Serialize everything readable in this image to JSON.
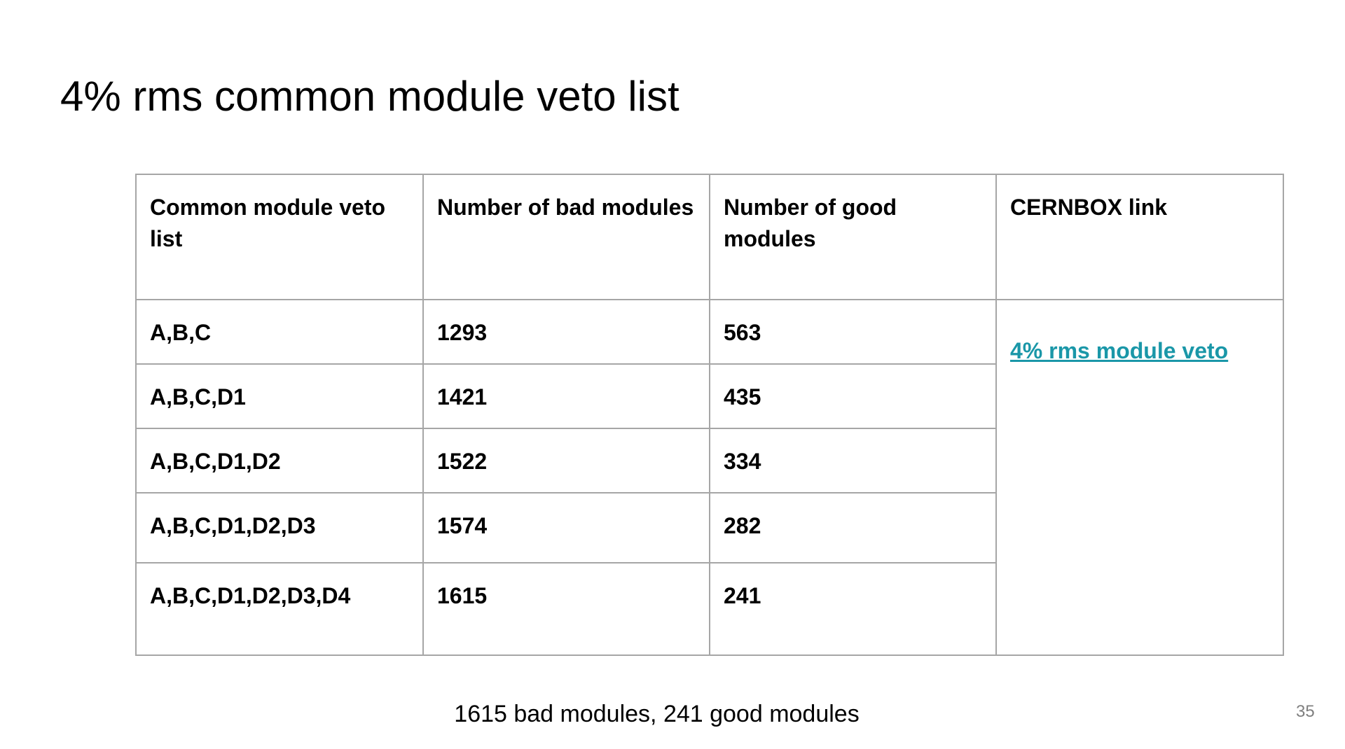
{
  "slide": {
    "title": "4% rms common module veto list",
    "summary": "1615 bad modules, 241 good modules",
    "page_number": "35"
  },
  "table": {
    "headers": [
      "Common module veto list",
      "Number of bad modules",
      "Number of good modules",
      "CERNBOX link"
    ],
    "rows": [
      {
        "veto_list": "A,B,C",
        "bad": "1293",
        "good": "563"
      },
      {
        "veto_list": "A,B,C,D1",
        "bad": "1421",
        "good": "435"
      },
      {
        "veto_list": "A,B,C,D1,D2",
        "bad": "1522",
        "good": "334"
      },
      {
        "veto_list": "A,B,C,D1,D2,D3",
        "bad": "1574",
        "good": "282"
      },
      {
        "veto_list": "A,B,C,D1,D2,D3,D4",
        "bad": "1615",
        "good": "241"
      }
    ],
    "link_text": "4% rms module veto",
    "link_color": "#1a97a8",
    "border_color": "#a6a6a6"
  }
}
